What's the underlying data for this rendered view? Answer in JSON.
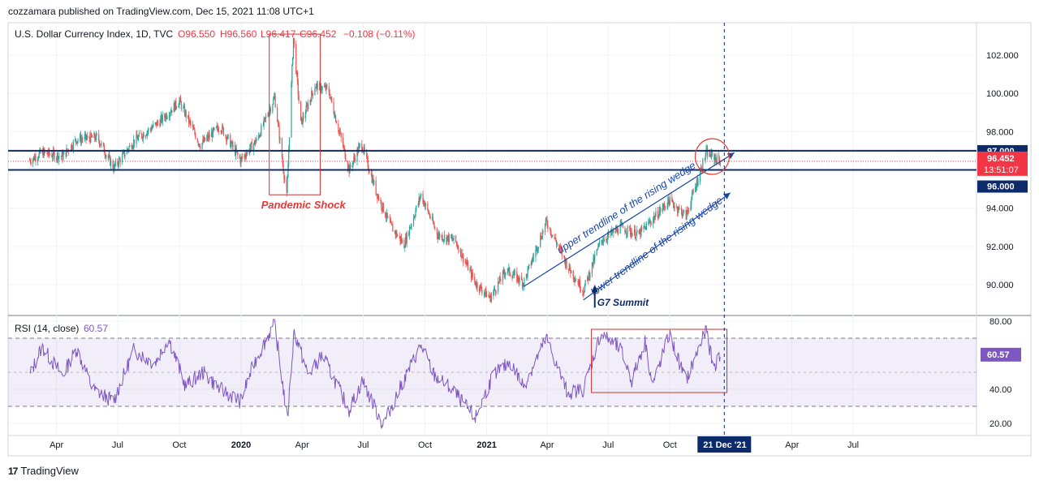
{
  "header": {
    "publisher": "cozzamara published on TradingView.com, Dec 15, 2021 11:08 UTC+1"
  },
  "branding": {
    "logo_mark": "17",
    "logo_text": "TradingView"
  },
  "chart_data": [
    {
      "type": "candlestick",
      "title": "U.S. Dollar Currency Index, 1D, TVC",
      "ohlc": {
        "open": "O96.550",
        "high": "H96.560",
        "low": "L96.417",
        "close": "C96.452",
        "change": "−0.108 (−0.11%)"
      },
      "ylim": [
        88.5,
        103.6
      ],
      "y_ticks": [
        "102.000",
        "100.000",
        "98.000",
        "94.000",
        "92.000",
        "90.000"
      ],
      "x_ticks": [
        "Apr",
        "Jul",
        "Oct",
        "2020",
        "Apr",
        "Jul",
        "Oct",
        "2021",
        "Apr",
        "Jul",
        "Oct",
        "Apr",
        "Jul"
      ],
      "x_ticks_bold": [
        "2020",
        "2021"
      ],
      "crosshair_date": "21 Dec '21",
      "price_levels": [
        {
          "label": "97.000",
          "value": 97.0,
          "color": "#0d2a6b"
        },
        {
          "label": "96.000",
          "value": 96.0,
          "color": "#0d2a6b"
        }
      ],
      "last_price": {
        "label": "96.452",
        "countdown": "13:51:07",
        "value": 96.452,
        "color": "#f23645"
      },
      "annotations": {
        "pandemic": "Pandemic Shock",
        "upper": "upper trendline of the rising wedge",
        "lower": "lower trendline of the rising wedge",
        "g7": "G7 Summit"
      },
      "path_anchors": [
        {
          "x": "2019-02-20",
          "y": 96.5
        },
        {
          "x": "2019-03-10",
          "y": 96.9
        },
        {
          "x": "2019-04-10",
          "y": 96.7
        },
        {
          "x": "2019-05-01",
          "y": 97.6
        },
        {
          "x": "2019-06-01",
          "y": 97.7
        },
        {
          "x": "2019-06-25",
          "y": 96.1
        },
        {
          "x": "2019-07-25",
          "y": 97.5
        },
        {
          "x": "2019-09-01",
          "y": 98.5
        },
        {
          "x": "2019-10-01",
          "y": 99.6
        },
        {
          "x": "2019-11-01",
          "y": 97.3
        },
        {
          "x": "2019-12-01",
          "y": 98.3
        },
        {
          "x": "2019-12-31",
          "y": 96.5
        },
        {
          "x": "2020-01-25",
          "y": 97.6
        },
        {
          "x": "2020-02-20",
          "y": 99.8
        },
        {
          "x": "2020-03-09",
          "y": 94.6
        },
        {
          "x": "2020-03-19",
          "y": 102.9
        },
        {
          "x": "2020-03-30",
          "y": 98.4
        },
        {
          "x": "2020-04-20",
          "y": 100.4
        },
        {
          "x": "2020-05-10",
          "y": 100.2
        },
        {
          "x": "2020-06-10",
          "y": 96.0
        },
        {
          "x": "2020-06-28",
          "y": 97.4
        },
        {
          "x": "2020-07-20",
          "y": 94.9
        },
        {
          "x": "2020-08-10",
          "y": 93.1
        },
        {
          "x": "2020-08-31",
          "y": 92.1
        },
        {
          "x": "2020-09-25",
          "y": 94.7
        },
        {
          "x": "2020-10-20",
          "y": 92.6
        },
        {
          "x": "2020-11-15",
          "y": 92.3
        },
        {
          "x": "2020-12-15",
          "y": 90.1
        },
        {
          "x": "2021-01-06",
          "y": 89.3
        },
        {
          "x": "2021-01-30",
          "y": 90.8
        },
        {
          "x": "2021-02-25",
          "y": 90.1
        },
        {
          "x": "2021-03-31",
          "y": 93.3
        },
        {
          "x": "2021-05-01",
          "y": 91.0
        },
        {
          "x": "2021-05-25",
          "y": 89.7
        },
        {
          "x": "2021-06-20",
          "y": 92.3
        },
        {
          "x": "2021-07-20",
          "y": 93.0
        },
        {
          "x": "2021-08-15",
          "y": 92.6
        },
        {
          "x": "2021-09-30",
          "y": 94.4
        },
        {
          "x": "2021-10-25",
          "y": 93.6
        },
        {
          "x": "2021-11-24",
          "y": 96.9
        },
        {
          "x": "2021-12-15",
          "y": 96.45
        }
      ]
    },
    {
      "type": "line",
      "title": "RSI (14, close)",
      "current": "60.57",
      "value": 60.57,
      "ylim": [
        15,
        82
      ],
      "y_ticks": [
        "80.00",
        "40.00",
        "20.00"
      ],
      "bands": {
        "upper": 70,
        "middle": 50,
        "lower": 30
      },
      "color": "#7e57c2",
      "rsi_anchors": [
        {
          "x": "2019-02-20",
          "y": 48
        },
        {
          "x": "2019-03-10",
          "y": 65
        },
        {
          "x": "2019-04-10",
          "y": 48
        },
        {
          "x": "2019-05-01",
          "y": 64
        },
        {
          "x": "2019-05-25",
          "y": 40
        },
        {
          "x": "2019-06-25",
          "y": 33
        },
        {
          "x": "2019-07-25",
          "y": 63
        },
        {
          "x": "2019-08-25",
          "y": 55
        },
        {
          "x": "2019-09-15",
          "y": 70
        },
        {
          "x": "2019-10-10",
          "y": 42
        },
        {
          "x": "2019-11-05",
          "y": 50
        },
        {
          "x": "2019-12-01",
          "y": 40
        },
        {
          "x": "2019-12-31",
          "y": 33
        },
        {
          "x": "2020-01-20",
          "y": 55
        },
        {
          "x": "2020-02-20",
          "y": 79
        },
        {
          "x": "2020-03-10",
          "y": 22
        },
        {
          "x": "2020-03-20",
          "y": 74
        },
        {
          "x": "2020-04-10",
          "y": 48
        },
        {
          "x": "2020-05-01",
          "y": 60
        },
        {
          "x": "2020-06-10",
          "y": 28
        },
        {
          "x": "2020-06-30",
          "y": 45
        },
        {
          "x": "2020-07-30",
          "y": 19
        },
        {
          "x": "2020-08-30",
          "y": 45
        },
        {
          "x": "2020-09-25",
          "y": 66
        },
        {
          "x": "2020-10-15",
          "y": 48
        },
        {
          "x": "2020-11-10",
          "y": 40
        },
        {
          "x": "2020-12-15",
          "y": 23
        },
        {
          "x": "2021-01-10",
          "y": 48
        },
        {
          "x": "2021-02-05",
          "y": 56
        },
        {
          "x": "2021-02-25",
          "y": 42
        },
        {
          "x": "2021-03-31",
          "y": 70
        },
        {
          "x": "2021-05-01",
          "y": 38
        },
        {
          "x": "2021-05-25",
          "y": 40
        },
        {
          "x": "2021-06-20",
          "y": 73
        },
        {
          "x": "2021-07-20",
          "y": 63
        },
        {
          "x": "2021-08-05",
          "y": 45
        },
        {
          "x": "2021-08-25",
          "y": 68
        },
        {
          "x": "2021-09-05",
          "y": 42
        },
        {
          "x": "2021-09-30",
          "y": 72
        },
        {
          "x": "2021-10-25",
          "y": 45
        },
        {
          "x": "2021-11-24",
          "y": 75
        },
        {
          "x": "2021-12-05",
          "y": 52
        },
        {
          "x": "2021-12-15",
          "y": 60.57
        }
      ]
    }
  ]
}
